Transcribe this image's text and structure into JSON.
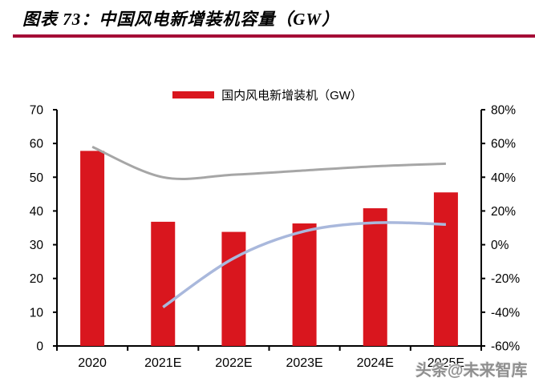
{
  "figure": {
    "title": "图表 73：中国风电新增装机容量（GW）",
    "watermark": "头条@未来智库"
  },
  "legend": {
    "items": [
      {
        "label": "国内风电新增装机（GW）",
        "swatch": "bar"
      }
    ]
  },
  "colors": {
    "bar": "#d9161e",
    "gray_line": "#a6a6a6",
    "blue_line": "#a9b8dc",
    "title_rule": "#a50d36",
    "axis": "#000000",
    "tick_text": "#000000",
    "watermark": "#8f8f8f"
  },
  "chart_data": {
    "type": "bar",
    "title": "图表 73：中国风电新增装机容量（GW）",
    "categories": [
      "2020",
      "2021E",
      "2022E",
      "2023E",
      "2024E",
      "2025E"
    ],
    "series": [
      {
        "name": "国内风电新增装机（GW）",
        "type": "bar",
        "axis": "left",
        "color": "#d9161e",
        "values": [
          57.8,
          36.8,
          33.8,
          36.3,
          40.8,
          45.5
        ]
      },
      {
        "name": "gray-line",
        "type": "line",
        "axis": "right",
        "unit": "%",
        "color": "#a6a6a6",
        "values": [
          58,
          40,
          41.5,
          44,
          46.5,
          48
        ]
      },
      {
        "name": "blue-line-yoy",
        "type": "line",
        "axis": "right",
        "unit": "%",
        "color": "#a9b8dc",
        "values": [
          null,
          -37,
          -8,
          8,
          13,
          12
        ]
      }
    ],
    "left_axis": {
      "min": 0,
      "max": 70,
      "step": 10,
      "ticks": [
        "0",
        "10",
        "20",
        "30",
        "40",
        "50",
        "60",
        "70"
      ]
    },
    "right_axis": {
      "min": -60,
      "max": 80,
      "step": 20,
      "ticks": [
        "-60%",
        "-40%",
        "-20%",
        "0%",
        "20%",
        "40%",
        "60%",
        "80%"
      ]
    },
    "grid": false,
    "legend_position": "top-center",
    "xlabel": "",
    "ylabel_left": "",
    "ylabel_right": ""
  }
}
